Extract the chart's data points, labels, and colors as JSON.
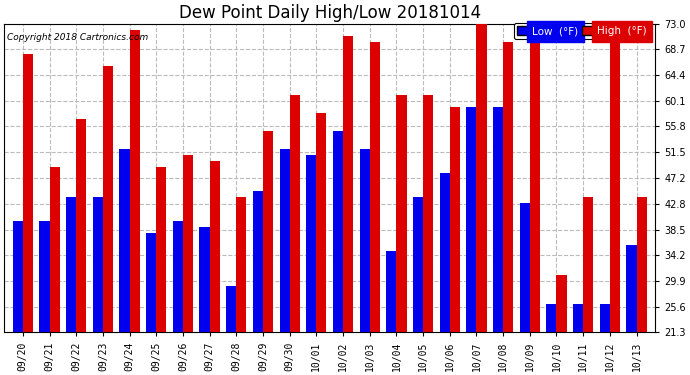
{
  "title": "Dew Point Daily High/Low 20181014",
  "copyright": "Copyright 2018 Cartronics.com",
  "dates": [
    "09/20",
    "09/21",
    "09/22",
    "09/23",
    "09/24",
    "09/25",
    "09/26",
    "09/27",
    "09/28",
    "09/29",
    "09/30",
    "10/01",
    "10/02",
    "10/03",
    "10/04",
    "10/05",
    "10/06",
    "10/07",
    "10/08",
    "10/09",
    "10/10",
    "10/11",
    "10/12",
    "10/13"
  ],
  "low_values": [
    40,
    40,
    44,
    44,
    52,
    38,
    40,
    39,
    29,
    45,
    52,
    51,
    55,
    52,
    35,
    44,
    48,
    59,
    59,
    43,
    26,
    26,
    26,
    36
  ],
  "high_values": [
    68,
    49,
    57,
    66,
    72,
    49,
    51,
    50,
    44,
    55,
    61,
    58,
    71,
    70,
    61,
    61,
    59,
    74,
    70,
    70,
    31,
    44,
    70,
    44
  ],
  "ylim_min": 21.3,
  "ylim_max": 73.0,
  "yticks": [
    21.3,
    25.6,
    29.9,
    34.2,
    38.5,
    42.8,
    47.2,
    51.5,
    55.8,
    60.1,
    64.4,
    68.7,
    73.0
  ],
  "low_color": "#0000ee",
  "high_color": "#dd0000",
  "bg_color": "#ffffff",
  "grid_color": "#bbbbbb",
  "bar_width": 0.38,
  "title_fontsize": 12,
  "tick_fontsize": 7,
  "legend_low_label": "Low  (°F)",
  "legend_high_label": "High  (°F)"
}
